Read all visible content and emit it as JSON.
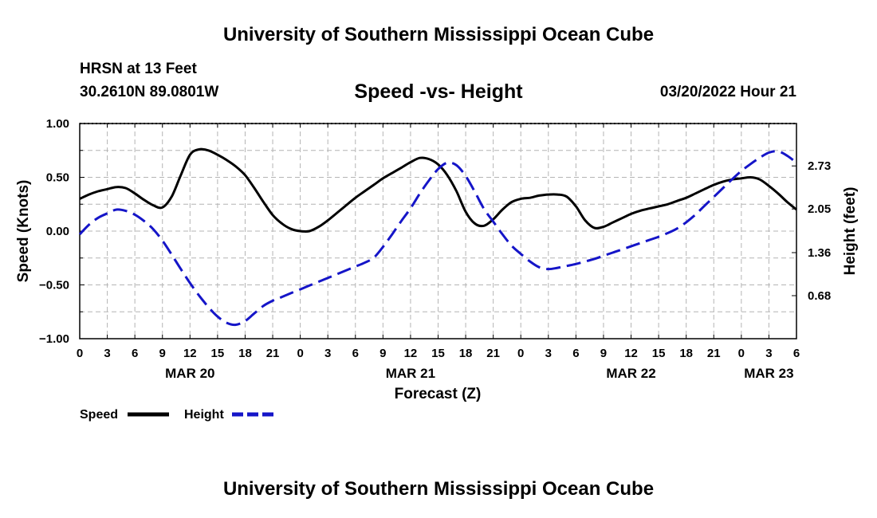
{
  "header": {
    "title": "University of Southern Mississippi Ocean Cube",
    "station": "HRSN at 13 Feet",
    "coords": "30.2610N  89.0801W",
    "chart_title": "Speed -vs- Height",
    "datetime": "03/20/2022 Hour 21"
  },
  "footer": {
    "title": "University of Southern Mississippi Ocean Cube"
  },
  "colors": {
    "speed": "#000000",
    "height": "#1515c8",
    "grid": "#b4b4b4"
  },
  "chart_data": {
    "type": "line",
    "title": "Speed -vs- Height",
    "xlabel": "Forecast (Z)",
    "ylabel": "Speed (Knots)",
    "y2label": "Height (feet)",
    "xlim": [
      0,
      78
    ],
    "ylim": [
      -1.0,
      1.0
    ],
    "y2lim": [
      0.0,
      3.4
    ],
    "x_tick_values": [
      0,
      3,
      6,
      9,
      12,
      15,
      18,
      21,
      24,
      27,
      30,
      33,
      36,
      39,
      42,
      45,
      48,
      51,
      54,
      57,
      60,
      63,
      66,
      69,
      72,
      75,
      78
    ],
    "x_tick_labels": [
      "0",
      "3",
      "6",
      "9",
      "12",
      "15",
      "18",
      "21",
      "0",
      "3",
      "6",
      "9",
      "12",
      "15",
      "18",
      "21",
      "0",
      "3",
      "6",
      "9",
      "12",
      "15",
      "18",
      "21",
      "0",
      "3",
      "6"
    ],
    "date_labels": [
      {
        "x": 12,
        "label": "MAR 20"
      },
      {
        "x": 36,
        "label": "MAR 21"
      },
      {
        "x": 60,
        "label": "MAR 22"
      },
      {
        "x": 75,
        "label": "MAR 23"
      }
    ],
    "y_ticks": [
      {
        "v": 1.0,
        "label": "1.00"
      },
      {
        "v": 0.5,
        "label": "0.50"
      },
      {
        "v": 0.0,
        "label": "0.00"
      },
      {
        "v": -0.5,
        "label": "−0.50"
      },
      {
        "v": -1.0,
        "label": "−1.00"
      }
    ],
    "y2_ticks": [
      {
        "v": 2.73,
        "label": "2.73"
      },
      {
        "v": 2.05,
        "label": "2.05"
      },
      {
        "v": 1.36,
        "label": "1.36"
      },
      {
        "v": 0.68,
        "label": "0.68"
      }
    ],
    "grid": true,
    "series": [
      {
        "name": "Speed",
        "axis": "left",
        "style": "solid",
        "x": [
          0,
          1,
          2,
          3,
          4,
          5,
          6,
          7,
          8,
          9,
          10,
          11,
          12,
          13,
          14,
          15,
          16,
          17,
          18,
          19,
          20,
          21,
          22,
          23,
          24,
          25,
          26,
          27,
          28,
          29,
          30,
          31,
          32,
          33,
          34,
          35,
          36,
          37,
          38,
          39,
          40,
          41,
          42,
          43,
          44,
          45,
          46,
          47,
          48,
          49,
          50,
          51,
          52,
          53,
          54,
          55,
          56,
          57,
          58,
          59,
          60,
          61,
          62,
          63,
          64,
          65,
          66,
          67,
          68,
          69,
          70,
          71,
          72,
          73,
          74,
          75,
          76,
          77,
          78
        ],
        "values": [
          0.3,
          0.34,
          0.37,
          0.39,
          0.41,
          0.4,
          0.35,
          0.29,
          0.24,
          0.22,
          0.32,
          0.52,
          0.71,
          0.76,
          0.75,
          0.71,
          0.66,
          0.6,
          0.52,
          0.4,
          0.27,
          0.15,
          0.07,
          0.02,
          0.0,
          0.0,
          0.04,
          0.1,
          0.17,
          0.24,
          0.31,
          0.37,
          0.43,
          0.49,
          0.54,
          0.59,
          0.64,
          0.68,
          0.67,
          0.62,
          0.52,
          0.37,
          0.18,
          0.07,
          0.05,
          0.11,
          0.2,
          0.27,
          0.3,
          0.31,
          0.33,
          0.34,
          0.34,
          0.32,
          0.23,
          0.1,
          0.03,
          0.04,
          0.08,
          0.12,
          0.16,
          0.19,
          0.21,
          0.23,
          0.25,
          0.28,
          0.31,
          0.35,
          0.39,
          0.43,
          0.46,
          0.48,
          0.49,
          0.5,
          0.48,
          0.42,
          0.35,
          0.27,
          0.2
        ]
      },
      {
        "name": "Height",
        "axis": "right",
        "style": "dashed",
        "x": [
          0,
          1,
          2,
          3,
          4,
          5,
          6,
          7,
          8,
          9,
          10,
          11,
          12,
          13,
          14,
          15,
          16,
          17,
          18,
          19,
          20,
          21,
          22,
          23,
          24,
          25,
          26,
          27,
          28,
          29,
          30,
          31,
          32,
          33,
          34,
          35,
          36,
          37,
          38,
          39,
          40,
          41,
          42,
          43,
          44,
          45,
          46,
          47,
          48,
          49,
          50,
          51,
          52,
          53,
          54,
          55,
          56,
          57,
          58,
          59,
          60,
          61,
          62,
          63,
          64,
          65,
          66,
          67,
          68,
          69,
          70,
          71,
          72,
          73,
          74,
          75,
          76,
          77,
          78
        ],
        "values": [
          1.65,
          1.8,
          1.91,
          1.98,
          2.04,
          2.02,
          1.96,
          1.86,
          1.73,
          1.55,
          1.33,
          1.1,
          0.88,
          0.68,
          0.5,
          0.35,
          0.25,
          0.22,
          0.28,
          0.4,
          0.52,
          0.6,
          0.66,
          0.72,
          0.78,
          0.84,
          0.9,
          0.96,
          1.02,
          1.08,
          1.14,
          1.2,
          1.28,
          1.45,
          1.65,
          1.86,
          2.06,
          2.29,
          2.5,
          2.68,
          2.78,
          2.74,
          2.57,
          2.32,
          2.05,
          1.85,
          1.65,
          1.47,
          1.34,
          1.22,
          1.13,
          1.1,
          1.12,
          1.15,
          1.18,
          1.22,
          1.26,
          1.31,
          1.36,
          1.41,
          1.46,
          1.51,
          1.56,
          1.61,
          1.67,
          1.74,
          1.84,
          1.96,
          2.1,
          2.24,
          2.38,
          2.52,
          2.65,
          2.76,
          2.86,
          2.94,
          2.96,
          2.89,
          2.78
        ]
      }
    ]
  }
}
